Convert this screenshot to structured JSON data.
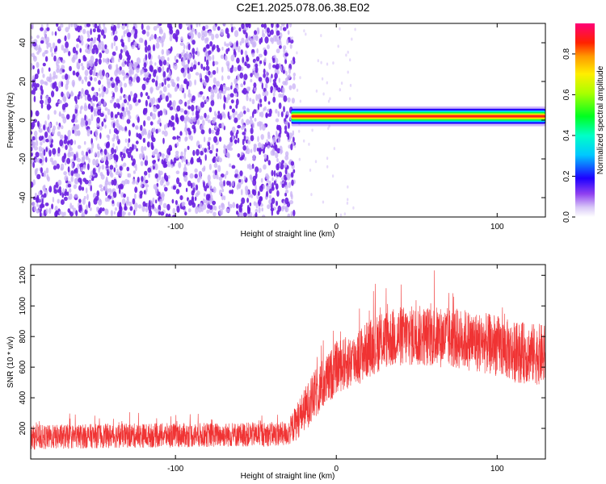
{
  "title": "C2E1.2025.078.06.38.E02",
  "colors": {
    "snr_line": "#f03333",
    "speckle_dark": "#6a1fe0",
    "speckle_light": "#c9b2f5",
    "axis": "#000000"
  },
  "chart_data": [
    {
      "type": "heatmap",
      "name": "spectrogram",
      "xlabel": "Height of straight line (km)",
      "ylabel": "Frequency (Hz)",
      "xlim": [
        -190,
        130
      ],
      "ylim": [
        -50,
        50
      ],
      "xticks": [
        -100,
        0,
        100
      ],
      "yticks": [
        -40,
        -20,
        0,
        20,
        40
      ],
      "noise_region_x": [
        -190,
        -28
      ],
      "signal_band": {
        "x_start": -28,
        "x_end": 130,
        "center_freq_hz": 2,
        "half_width_hz": 3
      },
      "colorbar": {
        "label": "Normalized spectral amplitude",
        "range": [
          0,
          0.95
        ],
        "ticks": [
          0.0,
          0.2,
          0.4,
          0.6,
          0.8
        ],
        "tick_labels": [
          "0.0",
          "0.2",
          "0.4",
          "0.6",
          "0.8"
        ],
        "colormap": "hsv-rainbow: white, violet, blue, cyan, green, yellow, orange, red, magenta"
      }
    },
    {
      "type": "line",
      "name": "snr",
      "xlabel": "Height of straight line (km)",
      "ylabel": "SNR (10 * v/v)",
      "xlim": [
        -190,
        130
      ],
      "ylim": [
        0,
        1270
      ],
      "xticks": [
        -100,
        0,
        100
      ],
      "yticks": [
        200,
        400,
        600,
        800,
        1000,
        1200
      ],
      "profile": {
        "x": [
          -190,
          -150,
          -100,
          -50,
          -30,
          -25,
          -20,
          -15,
          -10,
          -5,
          0,
          10,
          20,
          30,
          40,
          50,
          60,
          70,
          80,
          90,
          100,
          110,
          120,
          130
        ],
        "mean": [
          140,
          150,
          155,
          160,
          165,
          240,
          320,
          390,
          470,
          520,
          600,
          640,
          720,
          780,
          800,
          805,
          800,
          790,
          780,
          760,
          740,
          700,
          690,
          680
        ],
        "spread": [
          80,
          80,
          80,
          80,
          80,
          120,
          140,
          160,
          170,
          170,
          170,
          180,
          190,
          190,
          200,
          200,
          200,
          200,
          200,
          200,
          200,
          200,
          200,
          200
        ]
      }
    }
  ]
}
